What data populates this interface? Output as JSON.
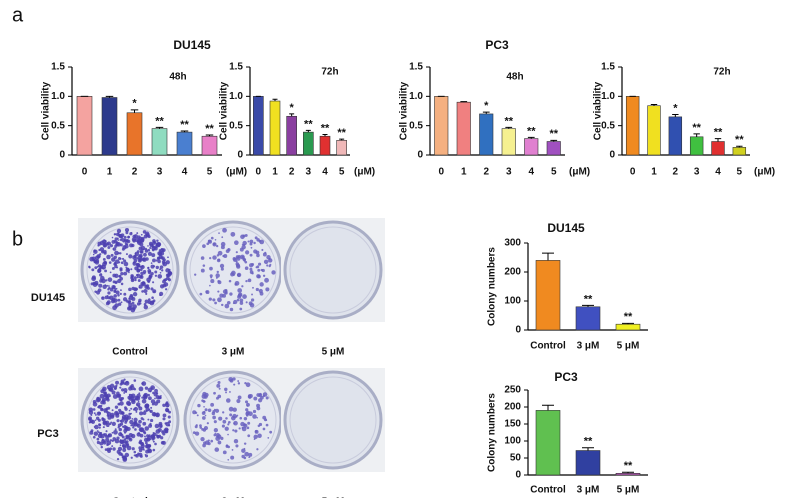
{
  "panel_labels": [
    "a",
    "b"
  ],
  "chart_data": [
    {
      "type": "bar",
      "title": "DU145",
      "subtitle": "48h",
      "ylabel": "Cell viability",
      "x_unit": "(μM)",
      "categories": [
        "0",
        "1",
        "2",
        "3",
        "4",
        "5"
      ],
      "values": [
        1.0,
        0.98,
        0.72,
        0.45,
        0.39,
        0.32
      ],
      "errors": [
        0.0,
        0.02,
        0.05,
        0.02,
        0.02,
        0.02
      ],
      "significance": [
        null,
        null,
        "*",
        "**",
        "**",
        "**"
      ],
      "colors": [
        "#f4a3a0",
        "#2d3a8c",
        "#e8742a",
        "#8fdcc0",
        "#4a7fd0",
        "#e880c8"
      ],
      "ylim": [
        0,
        1.5
      ],
      "yticks": [
        0,
        0.5,
        {
          "value": 1,
          "label": "1.0"
        },
        1.5
      ]
    },
    {
      "type": "bar",
      "subtitle": "72h",
      "ylabel": "Cell viability",
      "x_unit": "(μM)",
      "categories": [
        "0",
        "1",
        "2",
        "3",
        "4",
        "5"
      ],
      "values": [
        1.0,
        0.92,
        0.66,
        0.39,
        0.32,
        0.25
      ],
      "errors": [
        0.0,
        0.03,
        0.04,
        0.03,
        0.03,
        0.02
      ],
      "significance": [
        null,
        null,
        "*",
        "**",
        "**",
        "**"
      ],
      "colors": [
        "#3a4aa8",
        "#f0e020",
        "#8a3fa0",
        "#2a9a50",
        "#e03030",
        "#f0b8b8"
      ],
      "ylim": [
        0,
        1.5
      ],
      "yticks": [
        0,
        0.5,
        {
          "value": 1,
          "label": "1.0"
        },
        1.5
      ]
    },
    {
      "type": "bar",
      "title": "PC3",
      "subtitle": "48h",
      "ylabel": "Cell viability",
      "x_unit": "(μM)",
      "categories": [
        "0",
        "1",
        "2",
        "3",
        "4",
        "5"
      ],
      "values": [
        1.0,
        0.9,
        0.7,
        0.45,
        0.28,
        0.23
      ],
      "errors": [
        0.0,
        0.01,
        0.03,
        0.02,
        0.02,
        0.02
      ],
      "significance": [
        null,
        null,
        "*",
        "**",
        "**",
        "**"
      ],
      "colors": [
        "#f5b080",
        "#f08080",
        "#3070c0",
        "#f5f090",
        "#e080d0",
        "#a050c0"
      ],
      "ylim": [
        0,
        1.5
      ],
      "yticks": [
        0,
        0.5,
        {
          "value": 1,
          "label": "1.0"
        },
        1.5
      ]
    },
    {
      "type": "bar",
      "subtitle": "72h",
      "ylabel": "Cell viability",
      "x_unit": "(μM)",
      "categories": [
        "0",
        "1",
        "2",
        "3",
        "4",
        "5"
      ],
      "values": [
        1.0,
        0.84,
        0.65,
        0.31,
        0.23,
        0.13
      ],
      "errors": [
        0.0,
        0.02,
        0.04,
        0.05,
        0.05,
        0.02
      ],
      "significance": [
        null,
        null,
        "*",
        "**",
        "**",
        "**"
      ],
      "colors": [
        "#f08a20",
        "#f0e020",
        "#3050b0",
        "#40c040",
        "#e03030",
        "#d0d020"
      ],
      "ylim": [
        0,
        1.5
      ],
      "yticks": [
        0,
        0.5,
        {
          "value": 1,
          "label": "1.0"
        },
        1.5
      ]
    },
    {
      "type": "bar",
      "title": "DU145",
      "ylabel": "Colony numbers",
      "categories": [
        "Control",
        "3 μM",
        "5 μM"
      ],
      "values": [
        240,
        80,
        20
      ],
      "errors": [
        25,
        5,
        3
      ],
      "significance": [
        null,
        "**",
        "**"
      ],
      "colors": [
        "#f08a20",
        "#4050c0",
        "#f0f020"
      ],
      "ylim": [
        0,
        300
      ],
      "yticks": [
        0,
        100,
        200,
        300
      ]
    },
    {
      "type": "bar",
      "title": "PC3",
      "ylabel": "Colony numbers",
      "categories": [
        "Control",
        "3 μM",
        "5 μM"
      ],
      "values": [
        190,
        72,
        5
      ],
      "errors": [
        15,
        8,
        3
      ],
      "significance": [
        null,
        "**",
        "**"
      ],
      "colors": [
        "#60c050",
        "#3040a0",
        "#c060c0"
      ],
      "ylim": [
        0,
        250
      ],
      "yticks": [
        0,
        50,
        100,
        150,
        200,
        250
      ]
    }
  ],
  "colony_assay": {
    "rows": [
      "DU145",
      "PC3"
    ],
    "columns": [
      "Control",
      "3 μM",
      "5 μM"
    ]
  }
}
